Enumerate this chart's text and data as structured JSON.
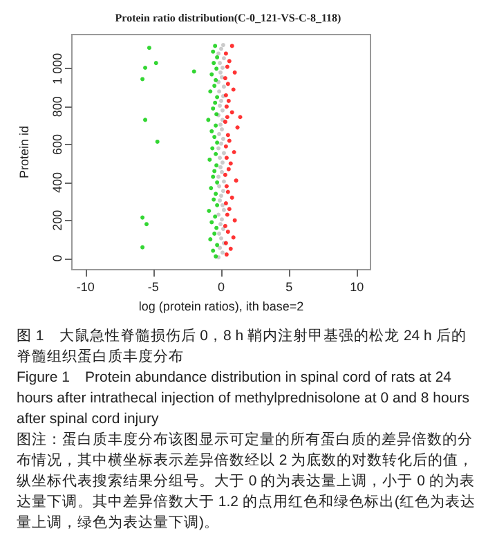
{
  "chart_data": {
    "type": "scatter",
    "title": "Protein ratio distribution(C-0_121-VS-C-8_118)",
    "xlabel": "log (protein ratios), ith base=2",
    "ylabel": "Protein id",
    "xlim": [
      -11,
      11
    ],
    "xticks": [
      -10,
      -5,
      0,
      5,
      10
    ],
    "ylim": [
      -60,
      1180
    ],
    "yticks": [
      0,
      200,
      400,
      600,
      800,
      {
        "value": 1000,
        "label": "1 000"
      }
    ],
    "grid": false,
    "marker": "circle",
    "series": [
      {
        "color": "#bebebe",
        "x": [
          -0.2,
          0.1,
          -0.1,
          0.2,
          0,
          -0.15,
          0.15,
          -0.05,
          0.05,
          -0.2,
          0.2,
          0.1,
          -0.1,
          0,
          0.15,
          -0.15,
          0.2,
          -0.2,
          0.05,
          -0.05,
          0.1,
          -0.1,
          0.2,
          -0.2,
          0,
          0.15,
          -0.15,
          0.05,
          -0.05,
          0.1,
          -0.2,
          0.1,
          -0.1,
          0,
          0.15,
          -0.15,
          0.2,
          -0.2,
          0.05,
          -0.05,
          0.1,
          -0.1,
          0.2,
          -0.2,
          0,
          0.15
        ],
        "values": [
          5,
          30,
          55,
          80,
          105,
          130,
          155,
          180,
          205,
          230,
          255,
          280,
          305,
          330,
          355,
          380,
          405,
          430,
          455,
          480,
          505,
          530,
          555,
          580,
          605,
          630,
          655,
          680,
          705,
          730,
          755,
          780,
          805,
          830,
          855,
          880,
          905,
          930,
          955,
          980,
          1005,
          1030,
          1055,
          1080,
          1105,
          1125
        ]
      },
      {
        "color": "#00cc00",
        "x": [
          -0.4,
          -0.6,
          -0.3,
          -0.8,
          -0.5,
          -0.35,
          -0.7,
          -0.45,
          -0.9,
          -0.3,
          -0.55,
          -0.4,
          -0.75,
          -0.3,
          -0.6,
          -0.5,
          -0.35,
          -0.85,
          -0.4,
          -0.65,
          -0.3,
          -0.5,
          -0.7,
          -0.4,
          -0.95,
          -0.35,
          -0.6,
          -0.45,
          -0.3,
          -0.8,
          -0.5,
          -0.4,
          -0.7,
          -0.35,
          -0.55,
          -0.3,
          -0.6,
          -0.45,
          -5.3,
          -4.8,
          -5.6,
          -2,
          -5.8,
          -5.6,
          -4.7,
          -5.8,
          -5.5,
          -5.8
        ],
        "values": [
          10,
          40,
          70,
          100,
          130,
          160,
          190,
          220,
          250,
          280,
          310,
          340,
          370,
          400,
          430,
          460,
          490,
          520,
          550,
          580,
          610,
          640,
          670,
          700,
          730,
          760,
          790,
          820,
          850,
          880,
          910,
          940,
          970,
          1000,
          1030,
          1060,
          1090,
          1120,
          1110,
          1030,
          1005,
          985,
          945,
          730,
          615,
          215,
          180,
          58
        ]
      },
      {
        "color": "#ff0000",
        "x": [
          0.4,
          0.7,
          0.35,
          0.9,
          0.5,
          0.3,
          1.0,
          0.45,
          0.6,
          0.35,
          0.8,
          0.5,
          0.4,
          1.1,
          0.3,
          0.55,
          0.7,
          0.4,
          0.95,
          0.35,
          0.6,
          0.5,
          1.2,
          0.3,
          0.45,
          1.4,
          0.8,
          0.4,
          0.55,
          0.35,
          0.9,
          0.5,
          0.3,
          1.0,
          0.45,
          0.6,
          0.35,
          0.8
        ],
        "values": [
          20,
          50,
          80,
          110,
          140,
          170,
          200,
          230,
          260,
          290,
          320,
          350,
          380,
          410,
          440,
          470,
          500,
          530,
          560,
          590,
          620,
          650,
          690,
          720,
          745,
          745,
          770,
          800,
          830,
          860,
          890,
          920,
          950,
          980,
          1010,
          1040,
          1080,
          1120
        ]
      }
    ],
    "annotations": [
      "图 1　大鼠急性脊髓损伤后 0，8 h 鞘内注射甲基强的松龙 24 h 后的脊髓组织蛋白质丰度分布",
      "Figure 1　Protein abundance distribution in spinal cord of rats at 24 hours after intrathecal injection of methylprednisolone at 0 and 8 hours after spinal cord injury",
      "图注：蛋白质丰度分布该图显示可定量的所有蛋白质的差异倍数的分布情况，其中横坐标表示差异倍数经以 2 为底数的对数转化后的值，纵坐标代表搜索结果分组号。大于 0 的为表达量上调，小于 0 的为表达量下调。其中差异倍数大于 1.2 的点用红色和绿色标出(红色为表达量上调，绿色为表达量下调)。"
    ]
  }
}
